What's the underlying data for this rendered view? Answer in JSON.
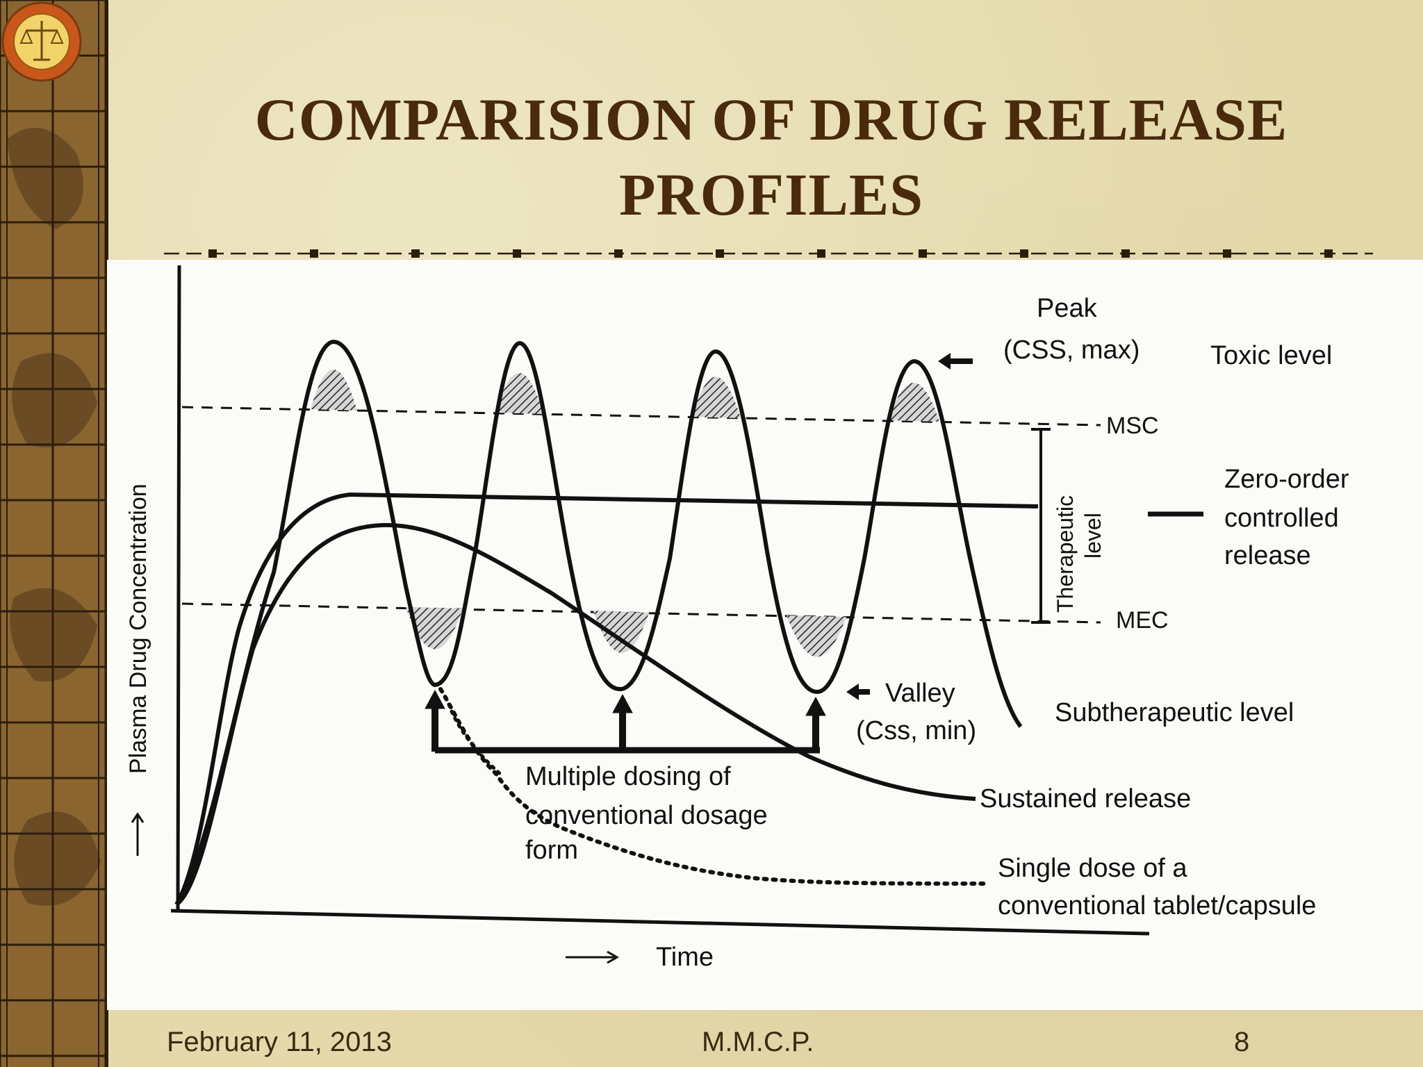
{
  "slide": {
    "title_line1": "COMPARISION OF DRUG RELEASE",
    "title_line2": "PROFILES",
    "footer_date": "February 11, 2013",
    "footer_org": "M.M.C.P.",
    "footer_page": "8"
  },
  "figure": {
    "y_axis_label": "Plasma Drug Concentration",
    "x_axis_label": "Time",
    "peak_label": "Peak",
    "peak_sub_label": "(CSS, max)",
    "toxic_label": "Toxic level",
    "msc_label": "MSC",
    "mec_label": "MEC",
    "therapeutic_label_1": "Therapeutic",
    "therapeutic_label_2": "level",
    "zero_order_line1": "Zero-order",
    "zero_order_line2": "controlled",
    "zero_order_line3": "release",
    "valley_label": "Valley",
    "valley_sub_label": "(Css, min)",
    "subtherapeutic_label": "Subtherapeutic level",
    "sustained_label": "Sustained release",
    "multiple_line1": "Multiple dosing of",
    "multiple_line2": "conventional dosage",
    "multiple_line3": "form",
    "single_line1": "Single dose of a",
    "single_line2": "conventional tablet/capsule"
  },
  "colors": {
    "title": "#4a2a0c",
    "sidebar": "#7b5a2c",
    "background": "#e4d9ab",
    "ink": "#111111"
  }
}
